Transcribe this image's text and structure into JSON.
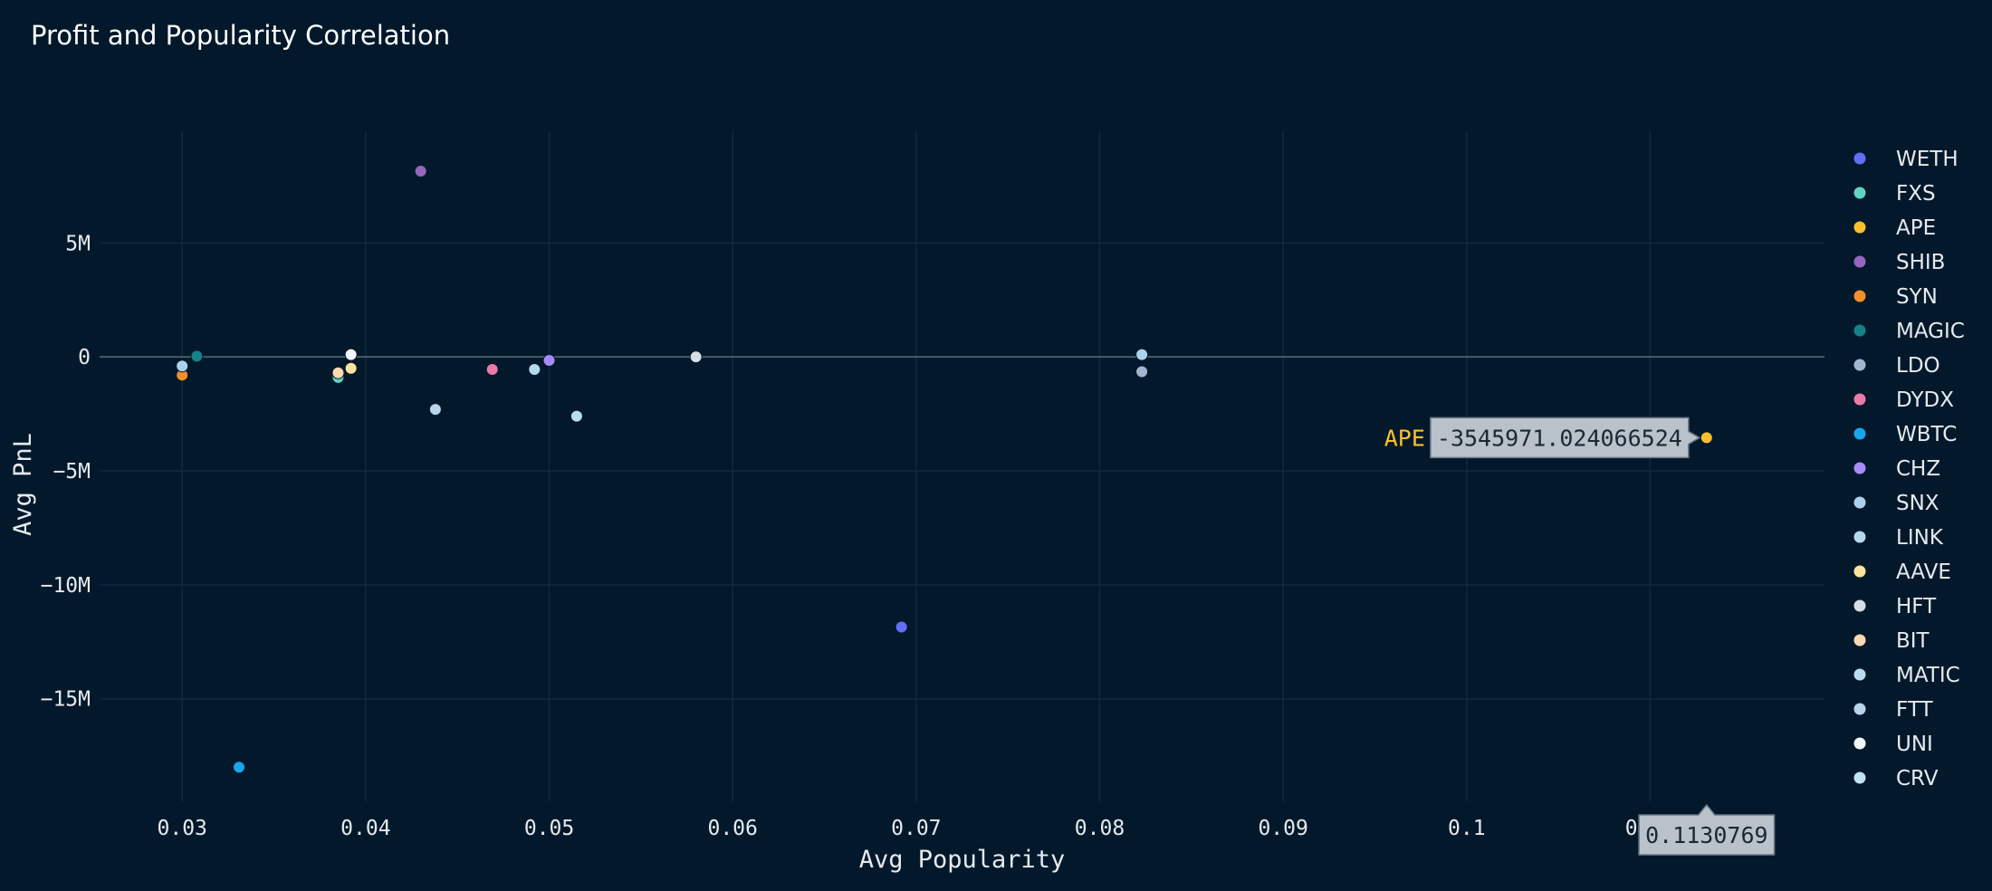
{
  "chart_data": {
    "type": "scatter",
    "title": "Profit and Popularity Correlation",
    "xlabel": "Avg Popularity",
    "ylabel": "Avg PnL",
    "xlim": [
      0.0255,
      0.1195
    ],
    "ylim": [
      -19500000,
      9900000
    ],
    "x_ticks": [
      0.03,
      0.04,
      0.05,
      0.06,
      0.07,
      0.08,
      0.09,
      0.1,
      0.11
    ],
    "x_tick_labels": [
      "0.03",
      "0.04",
      "0.05",
      "0.06",
      "0.07",
      "0.08",
      "0.09",
      "0.1",
      "0.11"
    ],
    "y_ticks": [
      5000000,
      0,
      -5000000,
      -10000000,
      -15000000
    ],
    "y_tick_labels": [
      "5M",
      "0",
      "−5M",
      "−10M",
      "−15M"
    ],
    "grid": true,
    "legend_position": "right",
    "series": [
      {
        "name": "WETH",
        "color": "#636efa",
        "points": [
          {
            "x": 0.0692,
            "y": -11850000
          }
        ]
      },
      {
        "name": "FXS",
        "color": "#5fd3c4",
        "points": [
          {
            "x": 0.0385,
            "y": -900000
          }
        ]
      },
      {
        "name": "APE",
        "color": "#fbc02d",
        "points": [
          {
            "x": 0.1130769,
            "y": -3545971.024066524
          }
        ]
      },
      {
        "name": "SHIB",
        "color": "#9467bd",
        "points": [
          {
            "x": 0.043,
            "y": 8150000
          }
        ]
      },
      {
        "name": "SYN",
        "color": "#f28e2b",
        "points": [
          {
            "x": 0.03,
            "y": -800000
          }
        ]
      },
      {
        "name": "MAGIC",
        "color": "#138388",
        "points": [
          {
            "x": 0.0308,
            "y": 30000
          }
        ]
      },
      {
        "name": "LDO",
        "color": "#a2b6d2",
        "points": [
          {
            "x": 0.0823,
            "y": -650000
          }
        ]
      },
      {
        "name": "DYDX",
        "color": "#ea7ba6",
        "points": [
          {
            "x": 0.0469,
            "y": -550000
          }
        ]
      },
      {
        "name": "WBTC",
        "color": "#1ba3ec",
        "points": [
          {
            "x": 0.0331,
            "y": -18000000
          }
        ]
      },
      {
        "name": "CHZ",
        "color": "#a78bfa",
        "points": [
          {
            "x": 0.05,
            "y": -150000
          }
        ]
      },
      {
        "name": "SNX",
        "color": "#aad2ec",
        "points": [
          {
            "x": 0.03,
            "y": -400000
          },
          {
            "x": 0.0823,
            "y": 100000
          }
        ]
      },
      {
        "name": "LINK",
        "color": "#b4d9ec",
        "points": [
          {
            "x": 0.0492,
            "y": -550000
          }
        ]
      },
      {
        "name": "AAVE",
        "color": "#ffe39c",
        "points": [
          {
            "x": 0.0392,
            "y": -500000
          }
        ]
      },
      {
        "name": "HFT",
        "color": "#d6dde4",
        "points": [
          {
            "x": 0.058,
            "y": 0
          }
        ]
      },
      {
        "name": "BIT",
        "color": "#ffd8b1",
        "points": [
          {
            "x": 0.0385,
            "y": -700000
          }
        ]
      },
      {
        "name": "MATIC",
        "color": "#b9dcef",
        "points": [
          {
            "x": 0.0515,
            "y": -2600000
          }
        ]
      },
      {
        "name": "FTT",
        "color": "#bad3ec",
        "points": [
          {
            "x": 0.0438,
            "y": -2300000
          }
        ]
      },
      {
        "name": "UNI",
        "color": "#f2f6fa",
        "points": [
          {
            "x": 0.0392,
            "y": 100000
          }
        ]
      },
      {
        "name": "CRV",
        "color": "#bfe3f4",
        "points": []
      }
    ],
    "hover": {
      "series": "APE",
      "name_label": "APE",
      "y_label": "-3545971.024066524",
      "x_label": "0.1130769"
    }
  },
  "colors": {
    "background": "#03192b",
    "grid": "#0f2a3d",
    "zero_line": "#4a5b66",
    "text": "#e6eaee",
    "hover_box": "#b9c2cb"
  }
}
